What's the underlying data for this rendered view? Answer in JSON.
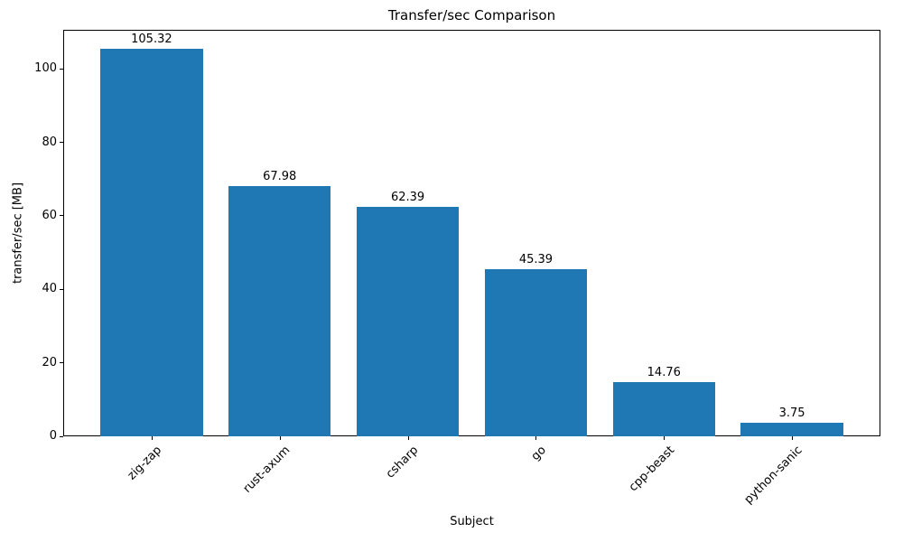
{
  "chart_data": {
    "type": "bar",
    "title": "Transfer/sec Comparison",
    "xlabel": "Subject",
    "ylabel": "transfer/sec [MB]",
    "categories": [
      "zig-zap",
      "rust-axum",
      "csharp",
      "go",
      "cpp-beast",
      "python-sanic"
    ],
    "values": [
      105.32,
      67.98,
      62.39,
      45.39,
      14.76,
      3.75
    ],
    "bar_labels": [
      "105.32",
      "67.98",
      "62.39",
      "45.39",
      "14.76",
      "3.75"
    ],
    "ylim": [
      0,
      110.6
    ],
    "yticks": [
      0,
      20,
      40,
      60,
      80,
      100
    ],
    "bar_color": "#1f77b4",
    "grid": false,
    "legend_position": "none"
  }
}
